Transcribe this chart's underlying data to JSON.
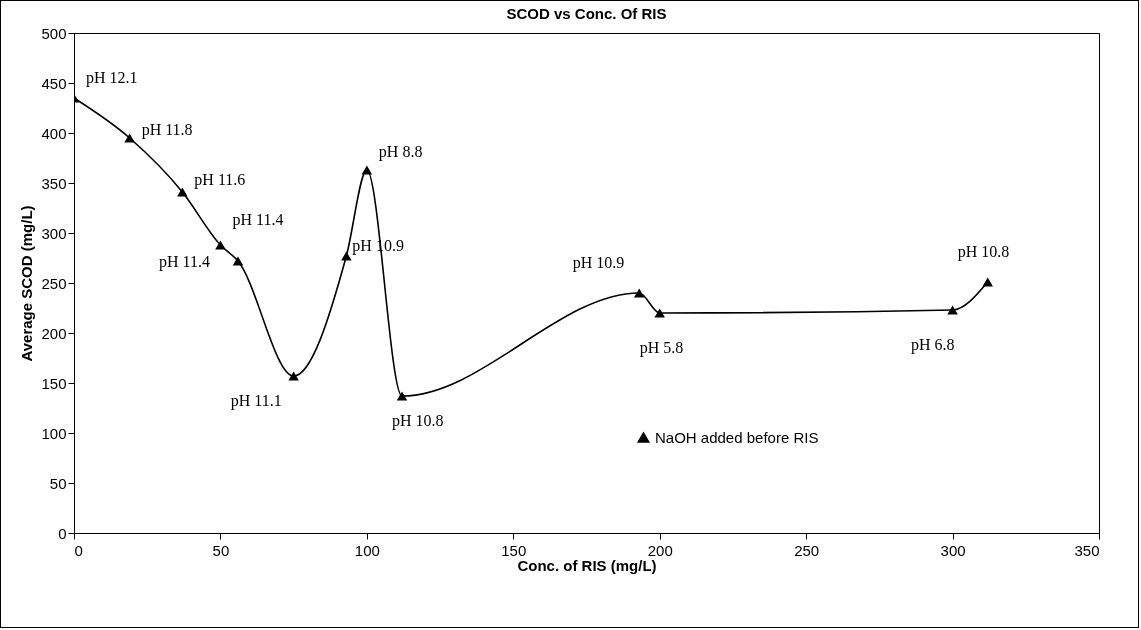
{
  "chart_data": {
    "type": "line",
    "title": "SCOD vs Conc. Of RIS",
    "xlabel": "Conc. of RIS (mg/L)",
    "ylabel": "Average SCOD (mg/L)",
    "x": [
      0,
      19,
      37,
      50,
      56,
      75,
      93,
      100,
      112,
      193,
      200,
      300,
      312
    ],
    "series": [
      {
        "name": "NaOH added before RIS",
        "color": "#000000",
        "values": [
          435,
          395,
          341,
          288,
          272,
          157,
          277,
          363,
          137,
          240,
          220,
          223,
          251
        ]
      }
    ],
    "xlim": [
      0,
      350
    ],
    "xticks": [
      0,
      50,
      100,
      150,
      200,
      250,
      300,
      350
    ],
    "ylim": [
      0,
      500
    ],
    "yticks": [
      0,
      50,
      100,
      150,
      200,
      250,
      300,
      350,
      400,
      450,
      500
    ],
    "grid": false,
    "legend": "bottom right",
    "marker": "triangle",
    "line_style": "solid",
    "annotations": [
      {
        "text": "pH 12.1",
        "x": 0,
        "y": 435
      },
      {
        "text": "pH 11.8",
        "x": 19,
        "y": 395
      },
      {
        "text": "pH 11.6",
        "x": 37,
        "y": 341
      },
      {
        "text": "pH 11.4",
        "x": 50,
        "y": 288
      },
      {
        "text": "pH 11.4",
        "x": 56,
        "y": 272
      },
      {
        "text": "pH 11.1",
        "x": 75,
        "y": 157
      },
      {
        "text": "pH 10.9",
        "x": 93,
        "y": 277
      },
      {
        "text": "pH 8.8",
        "x": 100,
        "y": 363
      },
      {
        "text": "pH 10.8",
        "x": 112,
        "y": 137
      },
      {
        "text": "pH 10.9",
        "x": 193,
        "y": 240
      },
      {
        "text": "pH 5.8",
        "x": 200,
        "y": 220
      },
      {
        "text": "pH 6.8",
        "x": 300,
        "y": 223
      },
      {
        "text": "pH 10.8",
        "x": 312,
        "y": 251
      }
    ]
  }
}
